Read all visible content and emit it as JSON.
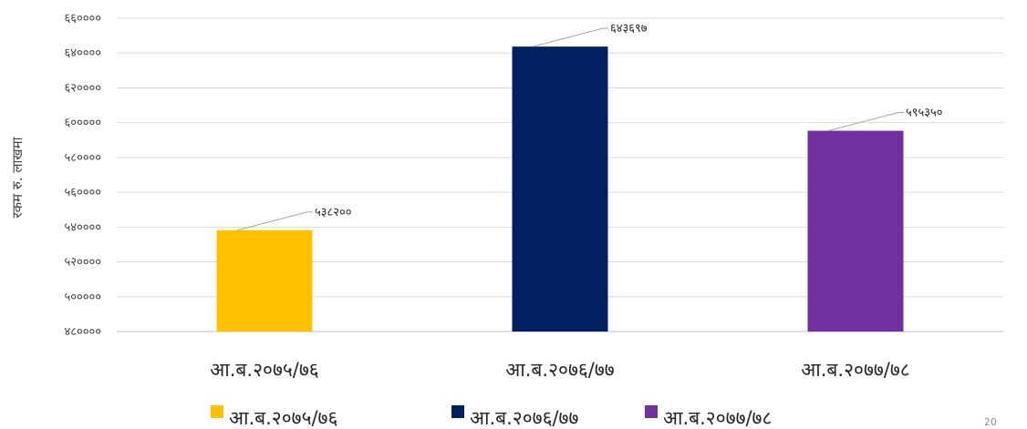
{
  "chart_data": {
    "type": "bar",
    "categories": [
      "आ.ब.२०७५/७६",
      "आ.ब.२०७६/७७",
      "आ.ब.२०७७/७८"
    ],
    "series": [
      {
        "name": "आ.ब.२०७५/७६",
        "color": "#FFC000"
      },
      {
        "name": "आ.ब.२०७६/७७",
        "color": "#002060"
      },
      {
        "name": "आ.ब.२०७७/७८",
        "color": "#7030A0"
      }
    ],
    "values": [
      538200,
      643697,
      595350
    ],
    "value_labels": [
      "५३८२००",
      "६४३६९७",
      "५९५३५०"
    ],
    "colors": [
      "#FFC000",
      "#002060",
      "#7030A0"
    ],
    "ylabel": "रकम रु. लाखमा",
    "ylim": [
      480000,
      660000
    ],
    "yticks": [
      480000,
      500000,
      520000,
      540000,
      560000,
      580000,
      600000,
      620000,
      640000,
      660000
    ],
    "ytick_labels": [
      "४८००००",
      "५०००००",
      "५२००००",
      "५४००००",
      "५६००००",
      "५८००००",
      "६०००००",
      "६२००००",
      "६४००००",
      "६६००००"
    ],
    "grid": true,
    "legend_position": "bottom"
  },
  "page_number": "20"
}
